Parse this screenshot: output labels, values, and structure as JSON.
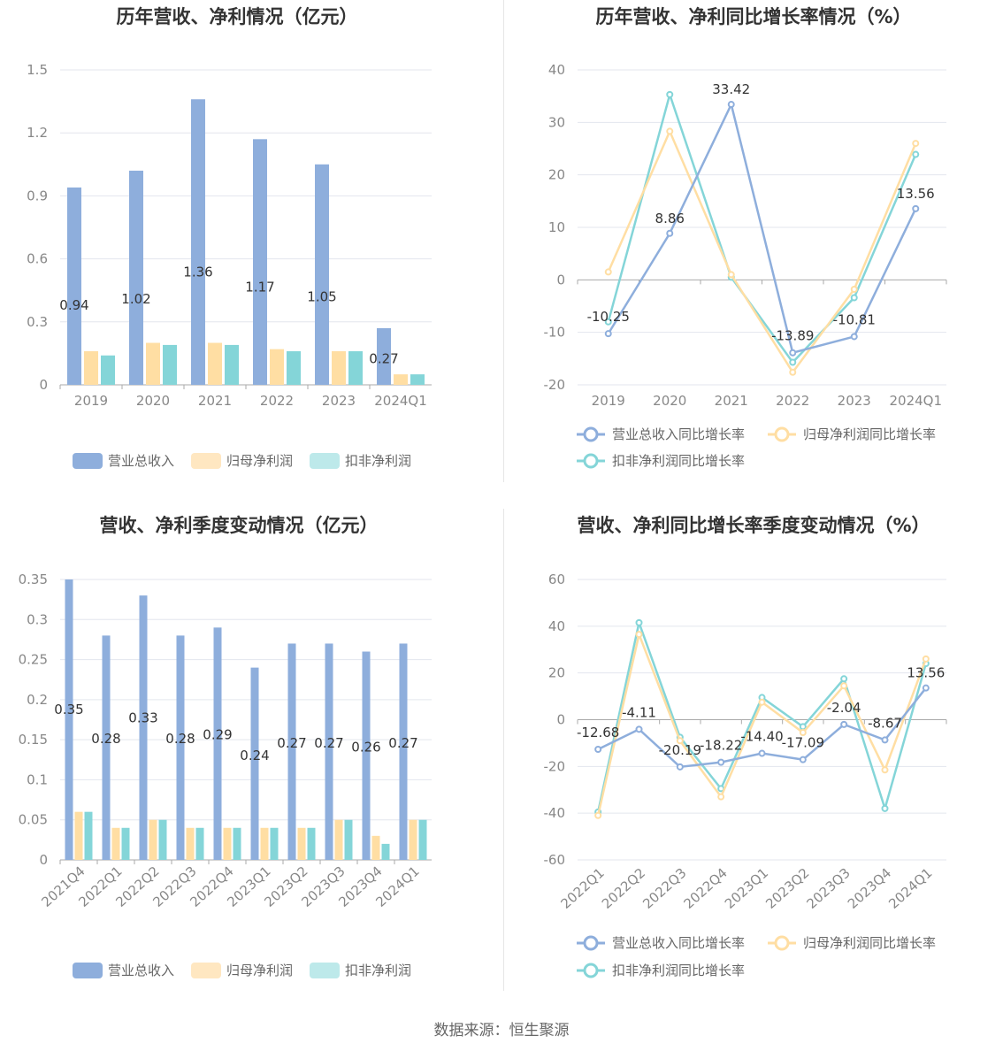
{
  "footer": {
    "source": "数据来源：恒生聚源"
  },
  "colors": {
    "revenue": "#8eaedc",
    "net_profit": "#ffdea3",
    "deducted": "#84d5d8",
    "revenue_legend": "#8eaedc",
    "net_profit_legend": "#ffe7c1",
    "deducted_legend": "#bde9ea"
  },
  "chart_data": [
    {
      "id": "annual-amount",
      "type": "bar",
      "title": "历年营收、净利情况（亿元）",
      "categories": [
        "2019",
        "2020",
        "2021",
        "2022",
        "2023",
        "2024Q1"
      ],
      "series": [
        {
          "name": "营业总收入",
          "values": [
            0.94,
            1.02,
            1.36,
            1.17,
            1.05,
            0.27
          ]
        },
        {
          "name": "归母净利润",
          "values": [
            0.16,
            0.2,
            0.2,
            0.17,
            0.16,
            0.05
          ]
        },
        {
          "name": "扣非净利润",
          "values": [
            0.14,
            0.19,
            0.19,
            0.16,
            0.16,
            0.05
          ]
        }
      ],
      "data_labels": {
        "series": 0,
        "labels": [
          "0.94",
          "1.02",
          "1.36",
          "1.17",
          "1.05",
          "0.27"
        ]
      },
      "ylim": [
        0,
        1.5
      ],
      "yticks": [
        "0",
        "0.3",
        "0.6",
        "0.9",
        "1.2",
        "1.5"
      ],
      "grid": true,
      "legend": "bottom"
    },
    {
      "id": "annual-growth",
      "type": "line",
      "title": "历年营收、净利同比增长率情况（%）",
      "categories": [
        "2019",
        "2020",
        "2021",
        "2022",
        "2023",
        "2024Q1"
      ],
      "series": [
        {
          "name": "营业总收入同比增长率",
          "values": [
            -10.25,
            8.86,
            33.42,
            -13.89,
            -10.81,
            13.56
          ]
        },
        {
          "name": "归母净利润同比增长率",
          "values": [
            1.5,
            28.3,
            1.0,
            -17.6,
            -1.8,
            26.0
          ]
        },
        {
          "name": "扣非净利润同比增长率",
          "values": [
            -8.0,
            35.3,
            0.5,
            -15.7,
            -3.4,
            23.9
          ]
        }
      ],
      "data_labels": {
        "series": 0,
        "labels": [
          "-10.25",
          "8.86",
          "33.42",
          "-13.89",
          "-10.81",
          "13.56"
        ]
      },
      "ylim": [
        -20,
        40
      ],
      "yticks": [
        "-20",
        "-10",
        "0",
        "10",
        "20",
        "30",
        "40"
      ],
      "grid": true,
      "legend": "bottom"
    },
    {
      "id": "quarterly-amount",
      "type": "bar",
      "title": "营收、净利季度变动情况（亿元）",
      "categories": [
        "2021Q4",
        "2022Q1",
        "2022Q2",
        "2022Q3",
        "2022Q4",
        "2023Q1",
        "2023Q2",
        "2023Q3",
        "2023Q4",
        "2024Q1"
      ],
      "series": [
        {
          "name": "营业总收入",
          "values": [
            0.35,
            0.28,
            0.33,
            0.28,
            0.29,
            0.24,
            0.27,
            0.27,
            0.26,
            0.27
          ]
        },
        {
          "name": "归母净利润",
          "values": [
            0.06,
            0.04,
            0.05,
            0.04,
            0.04,
            0.04,
            0.04,
            0.05,
            0.03,
            0.05
          ]
        },
        {
          "name": "扣非净利润",
          "values": [
            0.06,
            0.04,
            0.05,
            0.04,
            0.04,
            0.04,
            0.04,
            0.05,
            0.02,
            0.05
          ]
        }
      ],
      "data_labels": {
        "series": 0,
        "labels": [
          "0.35",
          "0.28",
          "0.33",
          "0.28",
          "0.29",
          "0.24",
          "0.27",
          "0.27",
          "0.26",
          "0.27"
        ]
      },
      "ylim": [
        0,
        0.35
      ],
      "yticks": [
        "0",
        "0.05",
        "0.1",
        "0.15",
        "0.2",
        "0.25",
        "0.3",
        "0.35"
      ],
      "grid": true,
      "legend": "bottom"
    },
    {
      "id": "quarterly-growth",
      "type": "line",
      "title": "营收、净利同比增长率季度变动情况（%）",
      "categories": [
        "2022Q1",
        "2022Q2",
        "2022Q3",
        "2022Q4",
        "2023Q1",
        "2023Q2",
        "2023Q3",
        "2023Q4",
        "2024Q1"
      ],
      "series": [
        {
          "name": "营业总收入同比增长率",
          "values": [
            -12.68,
            -4.11,
            -20.19,
            -18.22,
            -14.4,
            -17.09,
            -2.04,
            -8.67,
            13.56
          ]
        },
        {
          "name": "归母净利润同比增长率",
          "values": [
            -41.0,
            36.5,
            -9.0,
            -33.0,
            7.5,
            -5.5,
            14.5,
            -21.5,
            26.0
          ]
        },
        {
          "name": "扣非净利润同比增长率",
          "values": [
            -39.5,
            41.5,
            -7.5,
            -29.5,
            9.5,
            -3.0,
            17.5,
            -38.0,
            24.0
          ]
        }
      ],
      "data_labels": {
        "series": 0,
        "labels": [
          "-12.68",
          "-4.11",
          "-20.19",
          "-18.22",
          "-14.40",
          "-17.09",
          "-2.04",
          "-8.67",
          "13.56"
        ]
      },
      "ylim": [
        -60,
        60
      ],
      "yticks": [
        "-60",
        "-40",
        "-20",
        "0",
        "20",
        "40",
        "60"
      ],
      "grid": true,
      "legend": "bottom"
    }
  ]
}
